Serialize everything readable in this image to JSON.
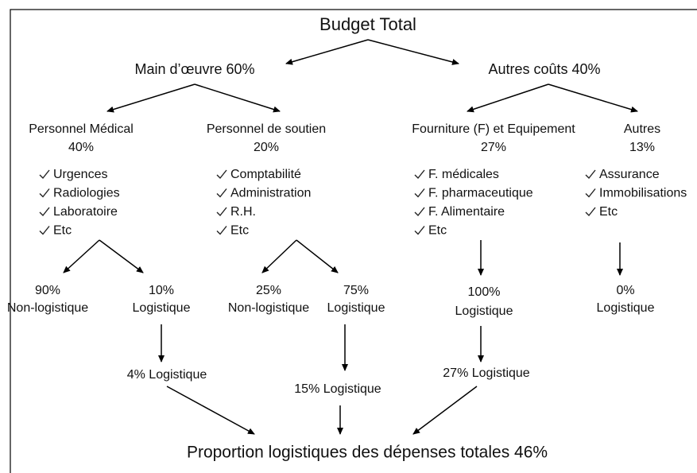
{
  "title": "Budget Total",
  "groups": [
    {
      "label": "Main d’œuvre 60%"
    },
    {
      "label": "Autres coûts 40%"
    }
  ],
  "categories": [
    {
      "name": "Personnel Médical",
      "share": "40%",
      "items": [
        "Urgences",
        "Radiologies",
        "Laboratoire",
        "Etc"
      ],
      "splits": [
        {
          "share": "90%",
          "label": "Non-logistique"
        },
        {
          "share": "10%",
          "label": "Logistique"
        }
      ],
      "result": "4% Logistique"
    },
    {
      "name": "Personnel de soutien",
      "share": "20%",
      "items": [
        "Comptabilité",
        "Administration",
        "R.H.",
        "Etc"
      ],
      "splits": [
        {
          "share": "25%",
          "label": "Non-logistique"
        },
        {
          "share": "75%",
          "label": "Logistique"
        }
      ],
      "result": "15% Logistique"
    },
    {
      "name": "Fourniture (F) et Equipement",
      "share": "27%",
      "items": [
        "F. médicales",
        "F. pharmaceutique",
        "F. Alimentaire",
        "Etc"
      ],
      "splits": [
        {
          "share": "100%",
          "label": "Logistique"
        }
      ],
      "result": "27% Logistique"
    },
    {
      "name": "Autres",
      "share": "13%",
      "items": [
        "Assurance",
        "Immobilisations",
        "Etc"
      ],
      "splits": [
        {
          "share": "0%",
          "label": "Logistique"
        }
      ]
    }
  ],
  "total": "Proportion logistiques des dépenses totales 46%"
}
